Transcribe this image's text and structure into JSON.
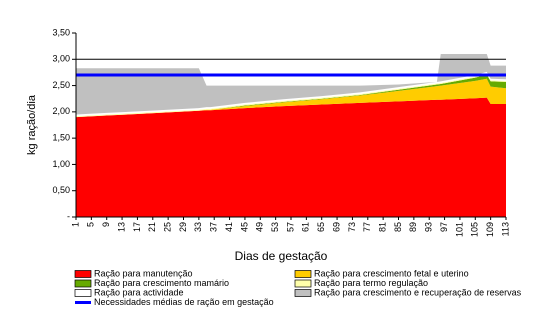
{
  "chart_data": {
    "type": "stacked_area",
    "x_label": "Dias de gestação",
    "y_label": "kg ração/dia",
    "x": [
      1,
      9,
      17,
      25,
      33,
      35,
      36,
      45,
      55,
      65,
      75,
      85,
      95,
      96,
      105,
      108,
      109,
      113
    ],
    "xlim": [
      1,
      113
    ],
    "xticks": [
      1,
      5,
      9,
      13,
      17,
      21,
      25,
      29,
      33,
      37,
      41,
      45,
      49,
      53,
      57,
      61,
      65,
      69,
      73,
      77,
      81,
      85,
      89,
      93,
      97,
      101,
      105,
      109,
      113
    ],
    "ylim": [
      0,
      3.5
    ],
    "yticks": [
      {
        "value": 0,
        "label": "-"
      },
      {
        "value": 0.5,
        "label": "0,50"
      },
      {
        "value": 1,
        "label": "1,00"
      },
      {
        "value": 1.5,
        "label": "1,50"
      },
      {
        "value": 2,
        "label": "2,00"
      },
      {
        "value": 2.5,
        "label": "2,50"
      },
      {
        "value": 3,
        "label": "3,00"
      },
      {
        "value": 3.5,
        "label": "3,50"
      }
    ],
    "reference_line": 3,
    "series": [
      {
        "name": "Ração para  manutenção",
        "color": "#ff0000",
        "values": [
          1.9,
          1.93,
          1.96,
          1.99,
          2.02,
          2.03,
          2.03,
          2.07,
          2.11,
          2.14,
          2.17,
          2.2,
          2.23,
          2.23,
          2.26,
          2.27,
          2.15,
          2.15
        ]
      },
      {
        "name": "Ração para crescimento fetal e uterino",
        "color": "#ffcc00",
        "values": [
          0,
          0,
          0,
          0,
          0,
          0.01,
          0.01,
          0.04,
          0.07,
          0.1,
          0.14,
          0.2,
          0.26,
          0.27,
          0.33,
          0.36,
          0.33,
          0.3
        ]
      },
      {
        "name": "Ração para crescimento mamário",
        "color": "#66aa00",
        "values": [
          0,
          0,
          0,
          0,
          0,
          0,
          0,
          0.01,
          0.01,
          0.01,
          0.01,
          0.02,
          0.03,
          0.03,
          0.06,
          0.08,
          0.1,
          0.12
        ]
      },
      {
        "name": "Ração para termo regulação",
        "color": "#ffffaa",
        "values": [
          0.02,
          0.02,
          0.02,
          0.02,
          0.02,
          0.02,
          0.02,
          0.02,
          0.02,
          0.02,
          0.02,
          0.02,
          0.02,
          0.02,
          0.02,
          0.02,
          0.02,
          0.02
        ]
      },
      {
        "name": "Ração para actividade",
        "color": "#ffffff",
        "values": [
          0.03,
          0.03,
          0.03,
          0.03,
          0.03,
          0.03,
          0.03,
          0.03,
          0.03,
          0.03,
          0.03,
          0.03,
          0.03,
          0.03,
          0.03,
          0.03,
          0.03,
          0.03
        ]
      },
      {
        "name": "Ração para crescimento e recuperação de reservas",
        "color": "#c0c0c0",
        "values": [
          0.88,
          0.85,
          0.82,
          0.79,
          0.76,
          0.41,
          0.41,
          0.33,
          0.26,
          0.2,
          0.13,
          0.05,
          0,
          0.52,
          0.4,
          0.34,
          0.25,
          0.26
        ]
      }
    ],
    "mean_line": {
      "name": "Necessidades médias de ração em gestação",
      "color": "#0000ff",
      "value": 2.7
    }
  }
}
